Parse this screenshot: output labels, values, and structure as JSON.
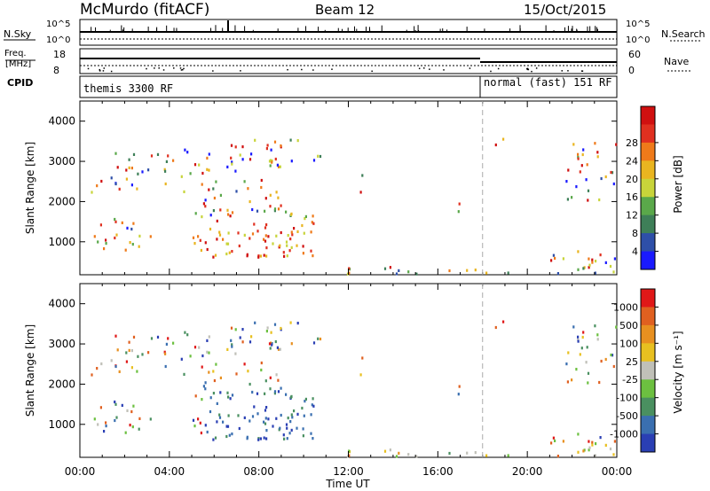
{
  "header": {
    "station": "McMurdo (fitACF)",
    "beam": "Beam 12",
    "date": "15/Oct/2015"
  },
  "strip_labels": {
    "nsky": "N.Sky",
    "nsearch": "N.Search",
    "freq_top": "Freq.",
    "freq_unit": "[MHz]",
    "nave": "Nave",
    "cpid": "CPID",
    "nsky_hi": "10^5",
    "nsky_lo": "10^0",
    "nsearch_hi": "10^5",
    "nsearch_lo": "10^0",
    "freq_hi": "18",
    "freq_lo": "8",
    "nave_hi": "60",
    "nave_lo": "0",
    "cpid_mode_1": "themis 3300 RF",
    "cpid_mode_2": "normal (fast) 151 RF"
  },
  "chart_data": [
    {
      "type": "heatmap",
      "name": "power",
      "ylabel": "Slant Range [km]",
      "xlabel": "Time UT",
      "xticks": [
        "00:00",
        "04:00",
        "08:00",
        "12:00",
        "16:00",
        "20:00",
        "00:00"
      ],
      "yticks": [
        "1000",
        "2000",
        "3000",
        "4000"
      ],
      "ylim": [
        180,
        4500
      ],
      "colorbar_label": "Power [dB]",
      "colorbar_ticks": [
        "4",
        "8",
        "12",
        "16",
        "20",
        "24",
        "28"
      ],
      "colorbar_colors": [
        "#1a1aff",
        "#2e4fa8",
        "#3e7f58",
        "#5aa84a",
        "#c8d43a",
        "#e9b520",
        "#ef7a1a",
        "#e03020",
        "#d01010"
      ],
      "mode_change_hour": 18.0
    },
    {
      "type": "heatmap",
      "name": "velocity",
      "ylabel": "Slant Range [km]",
      "xlabel": "Time UT",
      "xticks": [
        "00:00",
        "04:00",
        "08:00",
        "12:00",
        "16:00",
        "20:00",
        "00:00"
      ],
      "yticks": [
        "1000",
        "2000",
        "3000",
        "4000"
      ],
      "ylim": [
        180,
        4500
      ],
      "colorbar_label": "Velocity [m s⁻¹]",
      "colorbar_ticks": [
        "1000",
        "500",
        "100",
        "25",
        "-25",
        "-100",
        "-500",
        "-1000"
      ],
      "colorbar_colors": [
        "#2a3fb4",
        "#3a6fb0",
        "#4a9060",
        "#6cc040",
        "#c0c0b8",
        "#e8c020",
        "#e89020",
        "#e06020",
        "#e01818"
      ],
      "mode_change_hour": 18.0
    }
  ],
  "axis": {
    "x_title": "Time UT"
  }
}
